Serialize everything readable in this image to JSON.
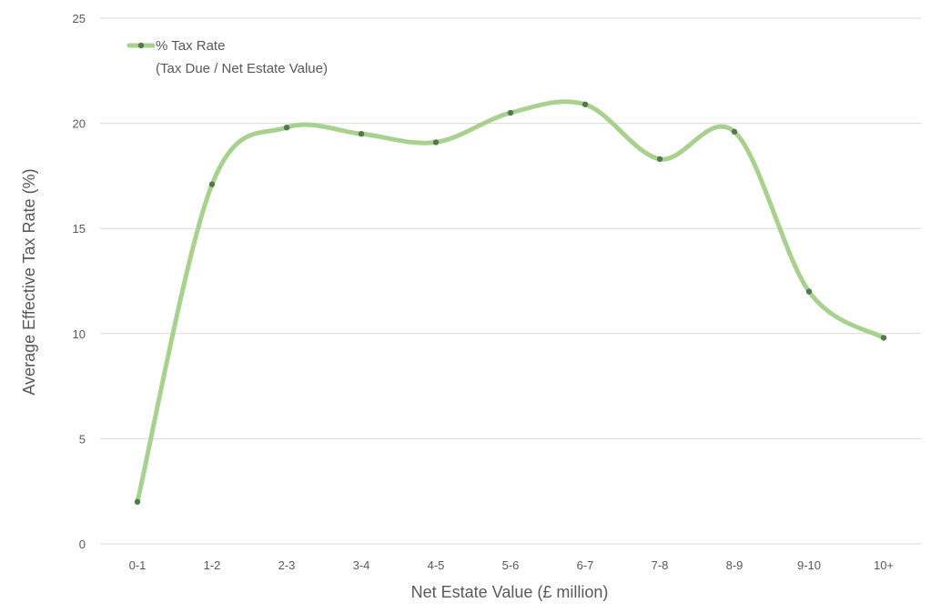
{
  "chart_data": {
    "type": "line",
    "categories": [
      "0-1",
      "1-2",
      "2-3",
      "3-4",
      "4-5",
      "5-6",
      "6-7",
      "7-8",
      "8-9",
      "9-10",
      "10+"
    ],
    "series": [
      {
        "name": "% Tax Rate",
        "name_line2": "(Tax Due / Net Estate Value)",
        "values": [
          2.0,
          17.1,
          19.8,
          19.5,
          19.1,
          20.5,
          20.9,
          18.3,
          19.6,
          12.0,
          9.8
        ],
        "color": "#a9d18e",
        "marker_color": "#4e7a4e"
      }
    ],
    "xlabel": "Net Estate Value (£ million)",
    "ylabel": "Average Effective Tax Rate (%)",
    "ylim": [
      0,
      25
    ],
    "yticks": [
      0,
      5,
      10,
      15,
      20,
      25
    ],
    "grid": true,
    "smooth": true,
    "legend": "top-left"
  }
}
